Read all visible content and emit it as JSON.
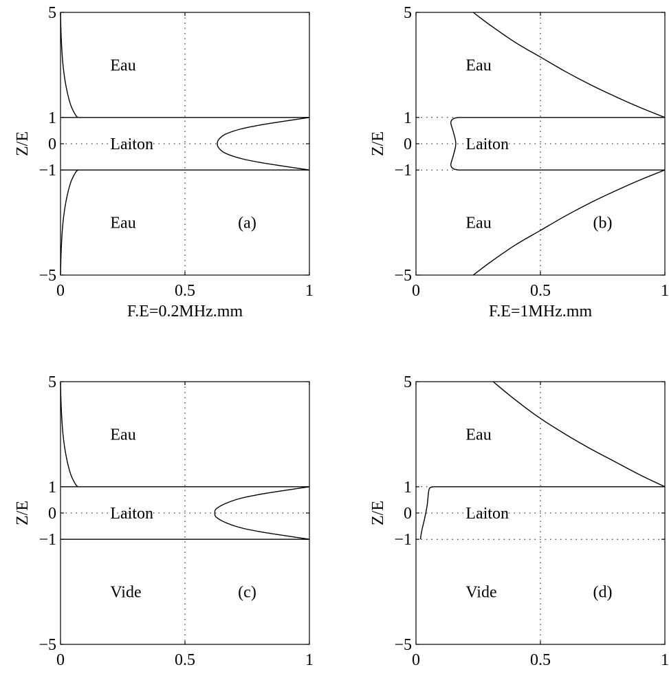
{
  "chart_data": [
    {
      "id": "a",
      "type": "line",
      "ylabel": "Z/E",
      "xlabel": "F.E=0.2MHz.mm",
      "panel_tag": "(a)",
      "xlim": [
        0,
        1
      ],
      "ylim": [
        -5,
        5
      ],
      "xticks": [
        0,
        0.5,
        1
      ],
      "yticks": [
        -5,
        -1,
        0,
        1,
        5
      ],
      "xtick_labels": [
        "0",
        "0.5",
        "1"
      ],
      "ytick_labels": [
        "−5",
        "−1",
        "0",
        "1",
        "5"
      ],
      "grid": "dotted at x=0.5 and y=0",
      "region_labels": [
        {
          "text": "Eau",
          "x": 0.2,
          "y": 3.0
        },
        {
          "text": "Laiton",
          "x": 0.2,
          "y": 0.0
        },
        {
          "text": "Eau",
          "x": 0.2,
          "y": -3.0
        }
      ],
      "interfaces": [
        {
          "y": 1,
          "style": "solid"
        },
        {
          "y": -1,
          "style": "solid"
        }
      ],
      "series": [
        {
          "values": [
            [
              0.0,
              5.0
            ],
            [
              0.003,
              4.0
            ],
            [
              0.01,
              3.0
            ],
            [
              0.022,
              2.2
            ],
            [
              0.04,
              1.5
            ],
            [
              0.06,
              1.1
            ],
            [
              0.07,
              1.0
            ]
          ]
        },
        {
          "values": [
            [
              1.0,
              1.0
            ],
            [
              0.9,
              0.86
            ],
            [
              0.8,
              0.71
            ],
            [
              0.72,
              0.55
            ],
            [
              0.66,
              0.35
            ],
            [
              0.635,
              0.15
            ],
            [
              0.63,
              0.0
            ],
            [
              0.635,
              -0.15
            ],
            [
              0.66,
              -0.35
            ],
            [
              0.72,
              -0.55
            ],
            [
              0.8,
              -0.71
            ],
            [
              0.9,
              -0.86
            ],
            [
              1.0,
              -1.0
            ]
          ]
        },
        {
          "values": [
            [
              0.07,
              -1.0
            ],
            [
              0.06,
              -1.1
            ],
            [
              0.04,
              -1.5
            ],
            [
              0.022,
              -2.2
            ],
            [
              0.01,
              -3.0
            ],
            [
              0.003,
              -4.0
            ],
            [
              0.0,
              -5.0
            ]
          ]
        }
      ]
    },
    {
      "id": "b",
      "type": "line",
      "ylabel": "Z/E",
      "xlabel": "F.E=1MHz.mm",
      "panel_tag": "(b)",
      "xlim": [
        0,
        1
      ],
      "ylim": [
        -5,
        5
      ],
      "xticks": [
        0,
        0.5,
        1
      ],
      "yticks": [
        -5,
        -1,
        0,
        1,
        5
      ],
      "xtick_labels": [
        "0",
        "0.5",
        "1"
      ],
      "ytick_labels": [
        "−5",
        "−1",
        "0",
        "1",
        "5"
      ],
      "grid": "dotted at x=0.5 and y=0",
      "region_labels": [
        {
          "text": "Eau",
          "x": 0.2,
          "y": 3.0
        },
        {
          "text": "Laiton",
          "x": 0.2,
          "y": 0.0
        },
        {
          "text": "Eau",
          "x": 0.2,
          "y": -3.0
        }
      ],
      "interfaces": [
        {
          "y": 1,
          "style": "solid-from-curve"
        },
        {
          "y": -1,
          "style": "solid-from-curve"
        }
      ],
      "series": [
        {
          "values": [
            [
              0.23,
              5.0
            ],
            [
              0.3,
              4.5
            ],
            [
              0.4,
              3.85
            ],
            [
              0.5,
              3.3
            ],
            [
              0.6,
              2.75
            ],
            [
              0.7,
              2.25
            ],
            [
              0.8,
              1.8
            ],
            [
              0.9,
              1.38
            ],
            [
              1.0,
              1.0
            ]
          ]
        },
        {
          "values": [
            [
              0.17,
              1.0
            ],
            [
              0.15,
              0.95
            ],
            [
              0.14,
              0.8
            ],
            [
              0.15,
              0.45
            ],
            [
              0.16,
              0.0
            ],
            [
              0.15,
              -0.45
            ],
            [
              0.14,
              -0.8
            ],
            [
              0.15,
              -0.95
            ],
            [
              0.17,
              -1.0
            ]
          ]
        },
        {
          "values": [
            [
              1.0,
              -1.0
            ],
            [
              0.9,
              -1.38
            ],
            [
              0.8,
              -1.8
            ],
            [
              0.7,
              -2.25
            ],
            [
              0.6,
              -2.75
            ],
            [
              0.5,
              -3.3
            ],
            [
              0.4,
              -3.85
            ],
            [
              0.3,
              -4.5
            ],
            [
              0.23,
              -5.0
            ]
          ]
        }
      ]
    },
    {
      "id": "c",
      "type": "line",
      "ylabel": "Z/E",
      "xlabel": "",
      "panel_tag": "(c)",
      "xlim": [
        0,
        1
      ],
      "ylim": [
        -5,
        5
      ],
      "xticks": [
        0,
        0.5,
        1
      ],
      "yticks": [
        -5,
        -1,
        0,
        1,
        5
      ],
      "xtick_labels": [
        "0",
        "0.5",
        "1"
      ],
      "ytick_labels": [
        "−5",
        "−1",
        "0",
        "1",
        "5"
      ],
      "grid": "dotted at x=0.5 and y=0",
      "region_labels": [
        {
          "text": "Eau",
          "x": 0.2,
          "y": 3.0
        },
        {
          "text": "Laiton",
          "x": 0.2,
          "y": 0.0
        },
        {
          "text": "Vide",
          "x": 0.2,
          "y": -3.0
        }
      ],
      "interfaces": [
        {
          "y": 1,
          "style": "solid"
        },
        {
          "y": -1,
          "style": "solid"
        }
      ],
      "series": [
        {
          "values": [
            [
              0.0,
              5.0
            ],
            [
              0.003,
              4.0
            ],
            [
              0.01,
              3.0
            ],
            [
              0.022,
              2.2
            ],
            [
              0.04,
              1.5
            ],
            [
              0.06,
              1.1
            ],
            [
              0.07,
              1.0
            ]
          ]
        },
        {
          "values": [
            [
              1.0,
              1.0
            ],
            [
              0.9,
              0.86
            ],
            [
              0.8,
              0.71
            ],
            [
              0.72,
              0.55
            ],
            [
              0.66,
              0.35
            ],
            [
              0.625,
              0.15
            ],
            [
              0.62,
              0.0
            ],
            [
              0.625,
              -0.15
            ],
            [
              0.66,
              -0.35
            ],
            [
              0.72,
              -0.55
            ],
            [
              0.8,
              -0.71
            ],
            [
              0.9,
              -0.86
            ],
            [
              1.0,
              -1.0
            ]
          ]
        }
      ]
    },
    {
      "id": "d",
      "type": "line",
      "ylabel": "Z/E",
      "xlabel": "",
      "panel_tag": "(d)",
      "xlim": [
        0,
        1
      ],
      "ylim": [
        -5,
        5
      ],
      "xticks": [
        0,
        0.5,
        1
      ],
      "yticks": [
        -5,
        -1,
        0,
        1,
        5
      ],
      "xtick_labels": [
        "0",
        "0.5",
        "1"
      ],
      "ytick_labels": [
        "−5",
        "−1",
        "0",
        "1",
        "5"
      ],
      "grid": "dotted at x=0.5, y=0 and y=-1",
      "region_labels": [
        {
          "text": "Eau",
          "x": 0.2,
          "y": 3.0
        },
        {
          "text": "Laiton",
          "x": 0.2,
          "y": 0.0
        },
        {
          "text": "Vide",
          "x": 0.2,
          "y": -3.0
        }
      ],
      "interfaces": [
        {
          "y": 1,
          "style": "solid-from-curve"
        },
        {
          "y": -1,
          "style": "dotted"
        }
      ],
      "series": [
        {
          "values": [
            [
              0.31,
              5.0
            ],
            [
              0.4,
              4.3
            ],
            [
              0.5,
              3.6
            ],
            [
              0.6,
              3.0
            ],
            [
              0.7,
              2.45
            ],
            [
              0.8,
              1.95
            ],
            [
              0.9,
              1.45
            ],
            [
              1.0,
              1.0
            ]
          ]
        },
        {
          "values": [
            [
              0.07,
              1.0
            ],
            [
              0.055,
              0.95
            ],
            [
              0.05,
              0.75
            ],
            [
              0.045,
              0.3
            ],
            [
              0.035,
              -0.2
            ],
            [
              0.025,
              -0.6
            ],
            [
              0.02,
              -0.85
            ],
            [
              0.018,
              -1.0
            ]
          ]
        }
      ]
    }
  ]
}
